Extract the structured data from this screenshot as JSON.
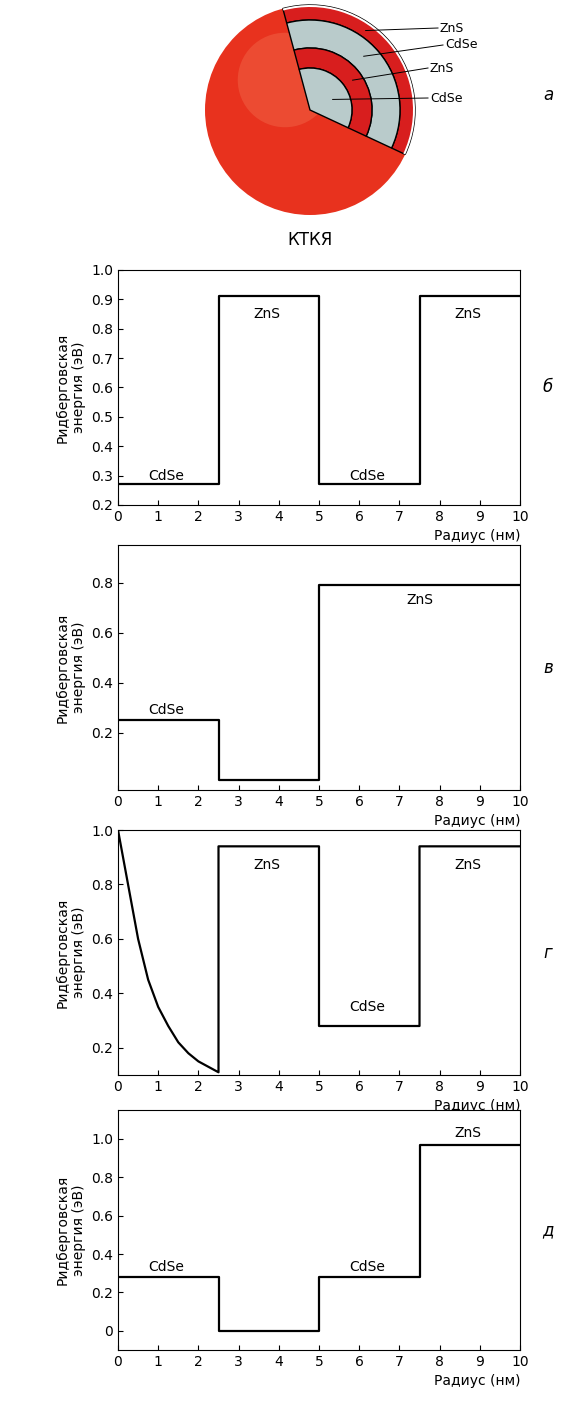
{
  "diagram": {
    "layers": [
      "ZnS",
      "CdSe",
      "ZnS",
      "CdSe"
    ],
    "caption": "КТКЯ",
    "panel_label": "а"
  },
  "chart_data": [
    {
      "type": "line",
      "panel_label": "б",
      "color": "#000000",
      "xlabel": "Радиус (нм)",
      "ylabel": "Ридберговская\nэнергия (эВ)",
      "x": [
        0,
        2.5,
        2.5,
        5,
        5,
        7.5,
        7.5,
        10
      ],
      "values": [
        0.27,
        0.27,
        0.91,
        0.91,
        0.27,
        0.27,
        0.91,
        0.91
      ],
      "xlim": [
        0,
        10
      ],
      "xticks": [
        0,
        1,
        2,
        3,
        4,
        5,
        6,
        7,
        8,
        9,
        10
      ],
      "ylim": [
        0.2,
        1.0
      ],
      "yticks": [
        0.2,
        0.3,
        0.4,
        0.5,
        0.6,
        0.7,
        0.8,
        0.9,
        1.0
      ],
      "annotations": [
        {
          "text": "CdSe",
          "x": 1.2,
          "y": 0.3
        },
        {
          "text": "ZnS",
          "x": 3.7,
          "y": 0.85
        },
        {
          "text": "CdSe",
          "x": 6.2,
          "y": 0.3
        },
        {
          "text": "ZnS",
          "x": 8.7,
          "y": 0.85
        }
      ]
    },
    {
      "type": "line",
      "panel_label": "в",
      "color": "#000000",
      "xlabel": "Радиус (нм)",
      "ylabel": "Ридберговская\nэнергия (эВ)",
      "x": [
        0,
        2.5,
        2.5,
        5,
        5,
        10
      ],
      "values": [
        0.25,
        0.25,
        0.01,
        0.01,
        0.79,
        0.79
      ],
      "xlim": [
        0,
        10
      ],
      "xticks": [
        0,
        1,
        2,
        3,
        4,
        5,
        6,
        7,
        8,
        9,
        10
      ],
      "ylim": [
        -0.03,
        0.95
      ],
      "yticks": [
        0.2,
        0.4,
        0.6,
        0.8
      ],
      "annotations": [
        {
          "text": "CdSe",
          "x": 1.2,
          "y": 0.29
        },
        {
          "text": "ZnS",
          "x": 7.5,
          "y": 0.73
        }
      ]
    },
    {
      "type": "line",
      "panel_label": "г",
      "color": "#000000",
      "xlabel": "Радиус (нм)",
      "ylabel": "Ридберговская\nэнергия (эВ)",
      "x": [
        0,
        0.25,
        0.5,
        0.75,
        1,
        1.25,
        1.5,
        1.75,
        2,
        2.25,
        2.5,
        2.5,
        5,
        5,
        7.5,
        7.5,
        10
      ],
      "values": [
        1.0,
        0.8,
        0.6,
        0.45,
        0.35,
        0.28,
        0.22,
        0.18,
        0.15,
        0.13,
        0.11,
        0.94,
        0.94,
        0.28,
        0.28,
        0.94,
        0.94
      ],
      "xlim": [
        0,
        10
      ],
      "xticks": [
        0,
        1,
        2,
        3,
        4,
        5,
        6,
        7,
        8,
        9,
        10
      ],
      "ylim": [
        0.1,
        1.0
      ],
      "yticks": [
        0.2,
        0.4,
        0.6,
        0.8,
        1.0
      ],
      "annotations": [
        {
          "text": "ZnS",
          "x": 3.7,
          "y": 0.87
        },
        {
          "text": "CdSe",
          "x": 6.2,
          "y": 0.35
        },
        {
          "text": "ZnS",
          "x": 8.7,
          "y": 0.87
        }
      ]
    },
    {
      "type": "line",
      "panel_label": "д",
      "color": "#000000",
      "xlabel": "Радиус (нм)",
      "ylabel": "Ридберговская\nэнергия (эВ)",
      "x": [
        0,
        2.5,
        2.5,
        5,
        5,
        7.5,
        7.5,
        10
      ],
      "values": [
        0.28,
        0.28,
        0.0,
        0.0,
        0.28,
        0.28,
        0.97,
        0.97
      ],
      "xlim": [
        0,
        10
      ],
      "xticks": [
        0,
        1,
        2,
        3,
        4,
        5,
        6,
        7,
        8,
        9,
        10
      ],
      "ylim": [
        -0.1,
        1.15
      ],
      "yticks": [
        0,
        0.2,
        0.4,
        0.6,
        0.8,
        1.0
      ],
      "annotations": [
        {
          "text": "CdSe",
          "x": 1.2,
          "y": 0.33
        },
        {
          "text": "CdSe",
          "x": 6.2,
          "y": 0.33
        },
        {
          "text": "ZnS",
          "x": 8.7,
          "y": 1.03
        }
      ]
    }
  ]
}
